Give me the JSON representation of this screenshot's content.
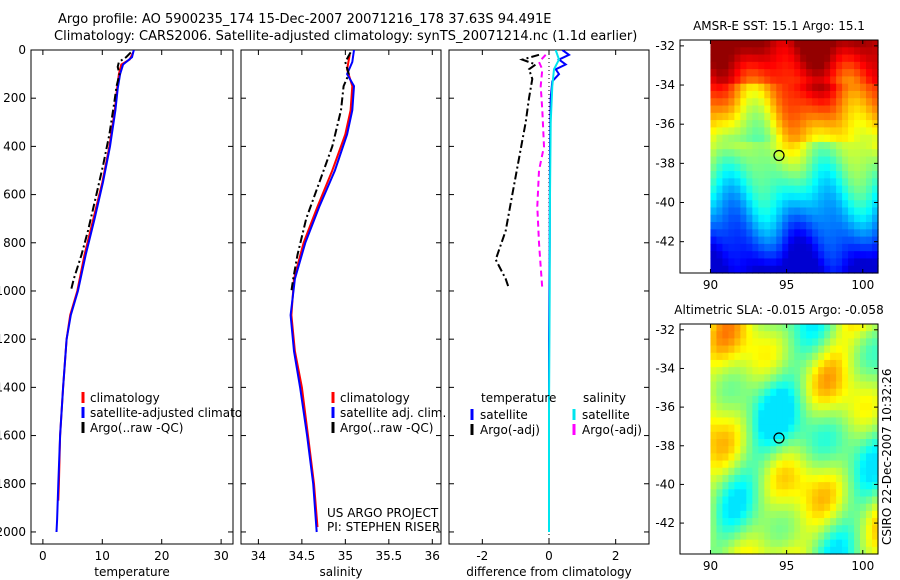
{
  "title": {
    "line1": "Argo profile: AO 5900235_174 15-Dec-2007 20071216_178 37.63S 94.491E",
    "line2": "Climatology: CARS2006. Satellite-adjusted climatology: synTS_20071214.nc (1.1d earlier)"
  },
  "colors": {
    "climatology": "#ff0000",
    "satellite_adjusted": "#0000ff",
    "argo": "#000000",
    "salinity_satellite": "#00e5ee",
    "salinity_argo": "#ff00ff"
  },
  "chart_data": [
    {
      "name": "temperature-panel",
      "type": "line",
      "xlabel": "temperature",
      "ylabel": "",
      "xlim": [
        -2,
        32
      ],
      "ylim": [
        2050,
        0
      ],
      "xticks": [
        "0",
        "10",
        "20",
        "30"
      ],
      "yticks": [
        "0",
        "200",
        "400",
        "600",
        "800",
        "1000",
        "1200",
        "1400",
        "1600",
        "1800",
        "2000"
      ],
      "legend": [
        "climatology",
        "satellite-adjusted climatology",
        "Argo(..raw -QC)"
      ],
      "legend_position": "lower-left",
      "series": [
        {
          "name": "climatology",
          "color": "#ff0000",
          "dash": "solid",
          "points": [
            [
              15.2,
              10
            ],
            [
              14.6,
              40
            ],
            [
              13.2,
              60
            ],
            [
              12.8,
              100
            ],
            [
              12.5,
              160
            ],
            [
              12.1,
              250
            ],
            [
              11.2,
              400
            ],
            [
              10.0,
              550
            ],
            [
              8.5,
              700
            ],
            [
              7.0,
              850
            ],
            [
              5.8,
              1000
            ],
            [
              4.6,
              1100
            ],
            [
              4.0,
              1200
            ],
            [
              3.4,
              1400
            ],
            [
              2.9,
              1600
            ],
            [
              2.7,
              1800
            ],
            [
              2.6,
              1870
            ]
          ]
        },
        {
          "name": "satellite-adjusted climatology",
          "color": "#0000ff",
          "dash": "solid",
          "points": [
            [
              15.3,
              0
            ],
            [
              15.0,
              30
            ],
            [
              13.5,
              60
            ],
            [
              13.0,
              100
            ],
            [
              12.6,
              160
            ],
            [
              12.2,
              250
            ],
            [
              11.3,
              400
            ],
            [
              10.1,
              550
            ],
            [
              8.7,
              700
            ],
            [
              7.2,
              850
            ],
            [
              5.9,
              1000
            ],
            [
              4.7,
              1100
            ],
            [
              4.0,
              1200
            ],
            [
              3.4,
              1400
            ],
            [
              2.9,
              1600
            ],
            [
              2.6,
              1800
            ],
            [
              2.4,
              1950
            ],
            [
              2.3,
              2000
            ]
          ]
        },
        {
          "name": "Argo(..raw -QC)",
          "color": "#000000",
          "dash": "dashdot",
          "points": [
            [
              14.8,
              10
            ],
            [
              14.0,
              30
            ],
            [
              12.8,
              50
            ],
            [
              12.6,
              70
            ],
            [
              12.9,
              100
            ],
            [
              12.4,
              150
            ],
            [
              12.0,
              220
            ],
            [
              11.2,
              350
            ],
            [
              10.2,
              470
            ],
            [
              9.0,
              600
            ],
            [
              7.6,
              750
            ],
            [
              6.5,
              850
            ],
            [
              5.2,
              950
            ],
            [
              4.8,
              990
            ]
          ]
        }
      ]
    },
    {
      "name": "salinity-panel",
      "type": "line",
      "xlabel": "salinity",
      "ylabel": "",
      "xlim": [
        33.8,
        36.1
      ],
      "ylim": [
        2050,
        0
      ],
      "xticks": [
        "34",
        "34.5",
        "35",
        "35.5",
        "36"
      ],
      "legend": [
        "climatology",
        "satellite adj. clim.",
        "Argo(..raw -QC)"
      ],
      "legend_position": "lower-right",
      "annotation": [
        "US ARGO PROJECT",
        "PI: STEPHEN RISER"
      ],
      "series": [
        {
          "name": "climatology",
          "color": "#ff0000",
          "dash": "solid",
          "points": [
            [
              35.05,
              20
            ],
            [
              35.02,
              80
            ],
            [
              35.08,
              150
            ],
            [
              35.06,
              250
            ],
            [
              35.0,
              350
            ],
            [
              34.85,
              500
            ],
            [
              34.68,
              650
            ],
            [
              34.52,
              800
            ],
            [
              34.41,
              950
            ],
            [
              34.38,
              1100
            ],
            [
              34.42,
              1250
            ],
            [
              34.5,
              1400
            ],
            [
              34.57,
              1600
            ],
            [
              34.64,
              1800
            ],
            [
              34.68,
              1980
            ]
          ]
        },
        {
          "name": "satellite adj. clim.",
          "color": "#0000ff",
          "dash": "solid",
          "points": [
            [
              35.1,
              0
            ],
            [
              35.08,
              50
            ],
            [
              35.02,
              100
            ],
            [
              35.1,
              150
            ],
            [
              35.08,
              250
            ],
            [
              35.02,
              350
            ],
            [
              34.88,
              500
            ],
            [
              34.7,
              650
            ],
            [
              34.54,
              800
            ],
            [
              34.42,
              950
            ],
            [
              34.37,
              1100
            ],
            [
              34.41,
              1250
            ],
            [
              34.48,
              1400
            ],
            [
              34.56,
              1600
            ],
            [
              34.63,
              1800
            ],
            [
              34.67,
              2000
            ]
          ]
        },
        {
          "name": "Argo(..raw -QC)",
          "color": "#000000",
          "dash": "dashdot",
          "points": [
            [
              35.06,
              10
            ],
            [
              35.0,
              50
            ],
            [
              35.04,
              100
            ],
            [
              34.98,
              150
            ],
            [
              34.95,
              250
            ],
            [
              34.85,
              400
            ],
            [
              34.7,
              550
            ],
            [
              34.55,
              700
            ],
            [
              34.45,
              850
            ],
            [
              34.4,
              950
            ],
            [
              34.38,
              1000
            ]
          ]
        }
      ]
    },
    {
      "name": "difference-panel",
      "type": "line",
      "xlabel": "difference from climatology",
      "ylabel": "",
      "xlim": [
        -3,
        3
      ],
      "ylim": [
        2050,
        0
      ],
      "xticks": [
        "-2",
        "0",
        "2"
      ],
      "legend_columns": [
        {
          "header": "temperature",
          "entries": [
            "satellite",
            "Argo(-adj)"
          ]
        },
        {
          "header": "salinity",
          "entries": [
            "satellite",
            "Argo(-adj)"
          ]
        }
      ],
      "legend_position": "lower-center",
      "series": [
        {
          "name": "temperature satellite",
          "color": "#0000ff",
          "dash": "solid",
          "points": [
            [
              0.4,
              0
            ],
            [
              0.6,
              20
            ],
            [
              0.3,
              40
            ],
            [
              0.5,
              60
            ],
            [
              0.2,
              80
            ],
            [
              0.3,
              100
            ],
            [
              0.1,
              130
            ],
            [
              0.05,
              200
            ],
            [
              0.03,
              400
            ],
            [
              0.02,
              800
            ],
            [
              0.0,
              1200
            ],
            [
              0.0,
              1600
            ],
            [
              0.0,
              2000
            ]
          ]
        },
        {
          "name": "temperature Argo(-adj)",
          "color": "#000000",
          "dash": "dashdot",
          "points": [
            [
              -0.3,
              20
            ],
            [
              -0.8,
              40
            ],
            [
              -0.4,
              60
            ],
            [
              -0.6,
              80
            ],
            [
              -0.5,
              120
            ],
            [
              -0.6,
              200
            ],
            [
              -0.7,
              300
            ],
            [
              -0.9,
              450
            ],
            [
              -1.1,
              600
            ],
            [
              -1.3,
              750
            ],
            [
              -1.6,
              870
            ],
            [
              -1.3,
              950
            ],
            [
              -1.2,
              990
            ]
          ]
        },
        {
          "name": "salinity satellite",
          "color": "#00e5ee",
          "dash": "solid",
          "points": [
            [
              0.2,
              0
            ],
            [
              0.3,
              40
            ],
            [
              0.15,
              80
            ],
            [
              0.1,
              150
            ],
            [
              0.05,
              300
            ],
            [
              0.03,
              600
            ],
            [
              0.02,
              1000
            ],
            [
              0.0,
              1500
            ],
            [
              0.0,
              2000
            ]
          ]
        },
        {
          "name": "salinity Argo(-adj)",
          "color": "#ff00ff",
          "dash": "dashed",
          "points": [
            [
              -0.1,
              20
            ],
            [
              -0.3,
              50
            ],
            [
              -0.2,
              80
            ],
            [
              -0.25,
              150
            ],
            [
              -0.2,
              250
            ],
            [
              -0.15,
              400
            ],
            [
              -0.3,
              500
            ],
            [
              -0.35,
              650
            ],
            [
              -0.3,
              800
            ],
            [
              -0.25,
              900
            ],
            [
              -0.2,
              990
            ]
          ]
        }
      ]
    },
    {
      "name": "sst-map",
      "type": "heatmap",
      "title": "AMSR-E SST: 15.1 Argo: 15.1",
      "xlim": [
        88,
        101
      ],
      "ylim": [
        -43.6,
        -31.7
      ],
      "xticks": [
        "90",
        "95",
        "100"
      ],
      "yticks": [
        "-32",
        "-34",
        "-36",
        "-38",
        "-40",
        "-42"
      ],
      "data_region": {
        "x": [
          90,
          101
        ],
        "y": [
          -43.6,
          -31.7
        ]
      },
      "marker": [
        94.5,
        -37.6
      ]
    },
    {
      "name": "sla-map",
      "type": "heatmap",
      "title": "Altimetric SLA: -0.015 Argo: -0.058",
      "xlim": [
        88,
        101
      ],
      "ylim": [
        -43.6,
        -31.7
      ],
      "xticks": [
        "90",
        "95",
        "100"
      ],
      "yticks": [
        "-32",
        "-34",
        "-36",
        "-38",
        "-40",
        "-42"
      ],
      "data_region": {
        "x": [
          90,
          101
        ],
        "y": [
          -43.6,
          -31.7
        ]
      },
      "marker": [
        94.5,
        -37.6
      ]
    }
  ],
  "side_label": "CSIRO 22-Dec-2007 10:32:26"
}
